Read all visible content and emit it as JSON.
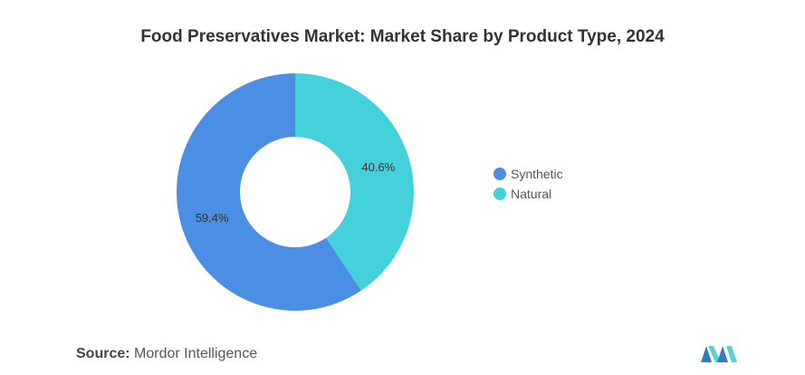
{
  "chart_data": {
    "type": "pie",
    "title": "Food Preservatives Market: Market Share by Product Type, 2024",
    "categories": [
      "Synthetic",
      "Natural"
    ],
    "values": [
      59.4,
      40.6
    ],
    "value_labels": [
      "59.4%",
      "40.6%"
    ],
    "colors": [
      "#4a8fe3",
      "#45d1dc"
    ],
    "donut": true,
    "legend_position": "right"
  },
  "source": {
    "label": "Source:",
    "text": "Mordor Intelligence"
  },
  "logo": {
    "name": "mordor-intelligence-logo",
    "colors": [
      "#2f7fbf",
      "#5ad1d6"
    ]
  }
}
